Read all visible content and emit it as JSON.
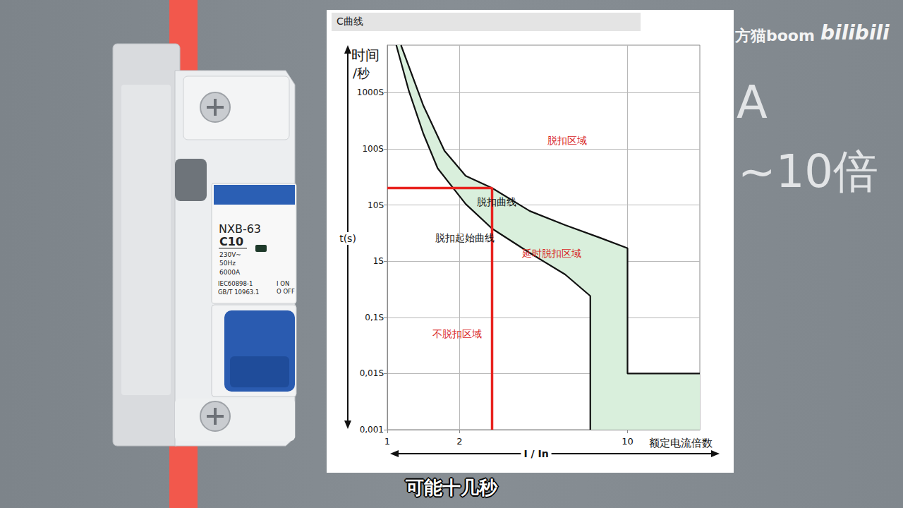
{
  "chart_data": {
    "type": "line",
    "title": "C曲线",
    "ylabel": [
      "时间",
      "/秒"
    ],
    "y_axis_mark": "t(s)",
    "xlabel": "额定电流倍数",
    "x_axis_mark": "I / In",
    "log": true,
    "grid": true,
    "xlim": [
      1,
      20
    ],
    "xticks": [
      1,
      2,
      10
    ],
    "ylim": [
      0.001,
      7000
    ],
    "yticks": [
      {
        "value": 0.001,
        "label": "0,001"
      },
      {
        "value": 0.01,
        "label": "0,01S"
      },
      {
        "value": 0.1,
        "label": "0,1S"
      },
      {
        "value": 1,
        "label": "1S"
      },
      {
        "value": 10,
        "label": "10S"
      },
      {
        "value": 100,
        "label": "100S"
      },
      {
        "value": 1000,
        "label": "1000S"
      }
    ],
    "series": [
      {
        "name": "脱扣曲线",
        "color": "#111111",
        "line_style": "solid",
        "x": [
          1.14,
          1.41,
          1.73,
          2.12,
          2.73,
          3.92,
          5.5,
          7.7,
          10,
          10,
          20
        ],
        "values": [
          7000,
          600,
          92,
          33,
          20,
          7.8,
          4.4,
          2.6,
          1.7,
          0.01,
          0.01
        ]
      },
      {
        "name": "脱扣起始曲线",
        "color": "#111111",
        "line_style": "solid",
        "x": [
          1.09,
          1.23,
          1.41,
          1.62,
          2.12,
          2.73,
          3.92,
          5.5,
          7,
          7
        ],
        "values": [
          7000,
          1070,
          190,
          45,
          10.4,
          3.8,
          1.4,
          0.58,
          0.24,
          0.001
        ]
      }
    ],
    "band": {
      "color": "#d9efdc",
      "between": [
        "脱扣曲线",
        "脱扣起始曲线"
      ]
    },
    "guide": {
      "color": "#e8231f",
      "x": 2.73,
      "y": 20
    },
    "annotations": [
      {
        "text": "脱扣区域",
        "color": "#d8261f"
      },
      {
        "text": "脱扣曲线",
        "color": "#111111"
      },
      {
        "text": "脱扣起始曲线",
        "color": "#111111"
      },
      {
        "text": "延时脱扣区域",
        "color": "#d8261f"
      },
      {
        "text": "不脱扣区域",
        "color": "#d8261f"
      }
    ]
  },
  "page": {
    "breaker": {
      "model": "NXB-63",
      "rating": "C10",
      "voltage": "230V~",
      "frequency": "50Hz",
      "capacity": "6000A",
      "standards": [
        "IEC60898-1",
        "GB/T 10963.1"
      ],
      "switch": [
        "I ON",
        "O OFF"
      ]
    },
    "side_text": [
      "A",
      "~10倍"
    ],
    "watermark": "方猫boom",
    "logo": "bilibili",
    "subtitle": "可能十几秒"
  }
}
